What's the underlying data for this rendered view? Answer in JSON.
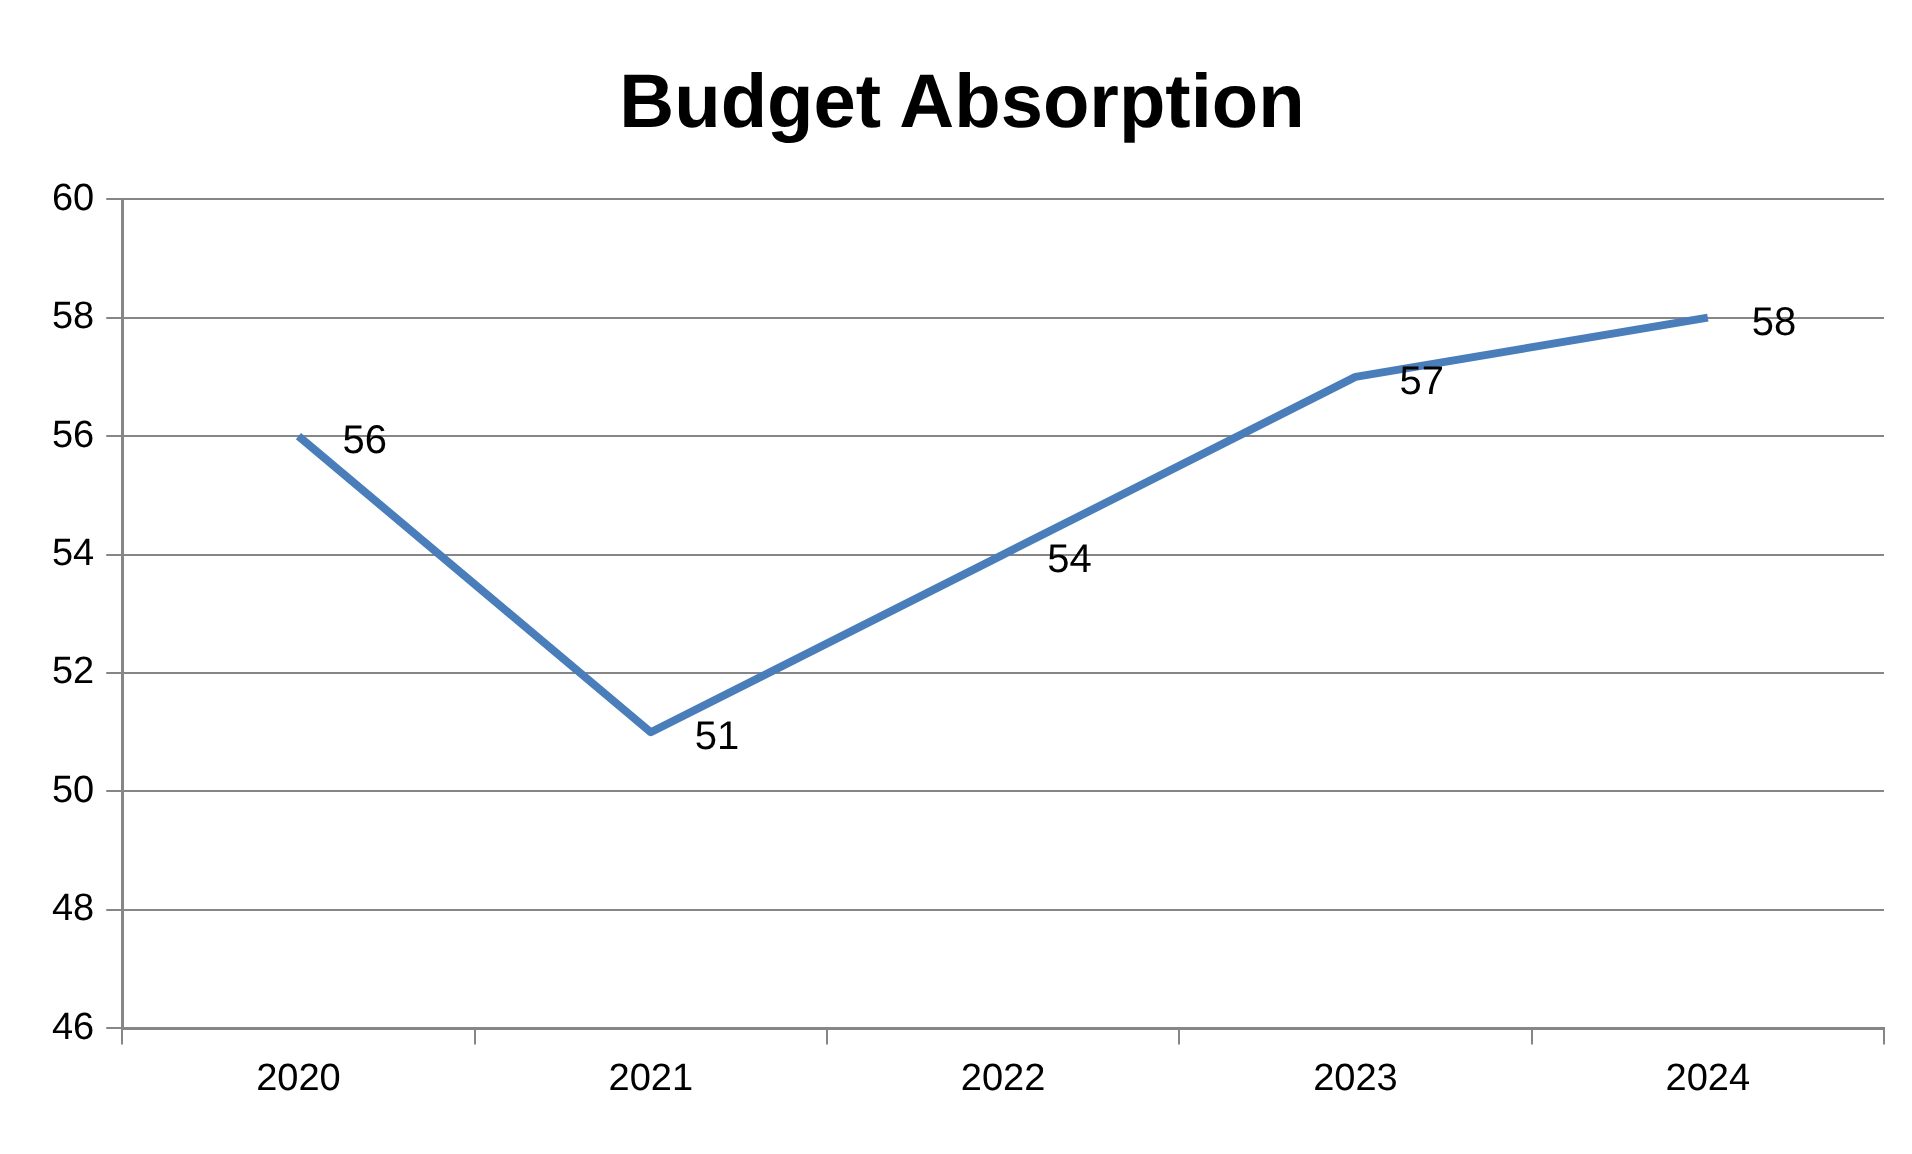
{
  "chart_data": {
    "type": "line",
    "title": "Budget Absorption",
    "categories": [
      "2020",
      "2021",
      "2022",
      "2023",
      "2024"
    ],
    "series": [
      {
        "color": "#4a7ebb",
        "values": [
          56,
          51,
          54,
          57,
          58
        ]
      }
    ],
    "ylim": [
      46,
      60
    ],
    "yticks": [
      46,
      48,
      50,
      52,
      54,
      56,
      58,
      60
    ],
    "grid": "y",
    "legend": false,
    "marker": "none",
    "line_style": "solid",
    "data_labels": true
  }
}
